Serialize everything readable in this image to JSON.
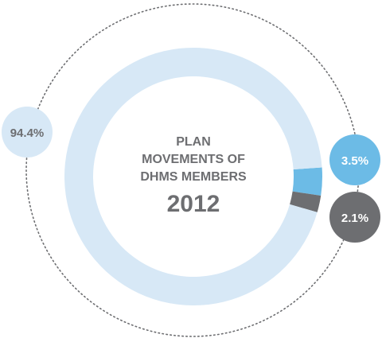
{
  "chart_data": {
    "type": "pie",
    "style": "donut",
    "title_lines": [
      "PLAN",
      "MOVEMENTS OF",
      "DHMS MEMBERS"
    ],
    "year": "2012",
    "slices": [
      {
        "value": 94.4,
        "label": "94.4%",
        "color": "#d7e8f6",
        "bubble_color": "#d7e8f6",
        "text_color": "#6d6e71"
      },
      {
        "value": 3.5,
        "label": "3.5%",
        "color": "#6cbbe6",
        "bubble_color": "#6cbbe6",
        "text_color": "#ffffff"
      },
      {
        "value": 2.1,
        "label": "2.1%",
        "color": "#6d6e71",
        "bubble_color": "#6d6e71",
        "text_color": "#ffffff"
      }
    ],
    "guide_circle": "dotted"
  }
}
